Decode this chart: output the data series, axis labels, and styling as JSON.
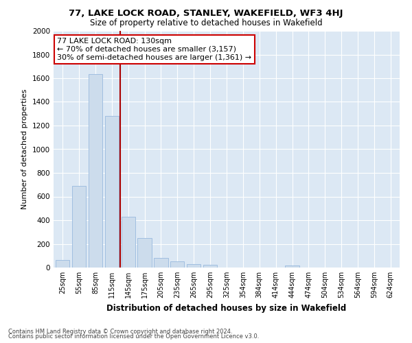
{
  "title1": "77, LAKE LOCK ROAD, STANLEY, WAKEFIELD, WF3 4HJ",
  "title2": "Size of property relative to detached houses in Wakefield",
  "xlabel": "Distribution of detached houses by size in Wakefield",
  "ylabel": "Number of detached properties",
  "categories": [
    "25sqm",
    "55sqm",
    "85sqm",
    "115sqm",
    "145sqm",
    "175sqm",
    "205sqm",
    "235sqm",
    "265sqm",
    "295sqm",
    "325sqm",
    "354sqm",
    "384sqm",
    "414sqm",
    "444sqm",
    "474sqm",
    "504sqm",
    "534sqm",
    "564sqm",
    "594sqm",
    "624sqm"
  ],
  "values": [
    65,
    690,
    1635,
    1280,
    430,
    250,
    80,
    50,
    30,
    25,
    0,
    0,
    0,
    0,
    15,
    0,
    0,
    0,
    0,
    0,
    0
  ],
  "bar_color": "#ccdcec",
  "bar_edge_color": "#a0bee0",
  "vline_color": "#aa0000",
  "annotation_text": "77 LAKE LOCK ROAD: 130sqm\n← 70% of detached houses are smaller (3,157)\n30% of semi-detached houses are larger (1,361) →",
  "annotation_box_color": "#ffffff",
  "annotation_box_edge": "#cc0000",
  "ylim": [
    0,
    2000
  ],
  "yticks": [
    0,
    200,
    400,
    600,
    800,
    1000,
    1200,
    1400,
    1600,
    1800,
    2000
  ],
  "background_color": "#dce8f4",
  "grid_color": "#ffffff",
  "footer1": "Contains HM Land Registry data © Crown copyright and database right 2024.",
  "footer2": "Contains public sector information licensed under the Open Government Licence v3.0."
}
